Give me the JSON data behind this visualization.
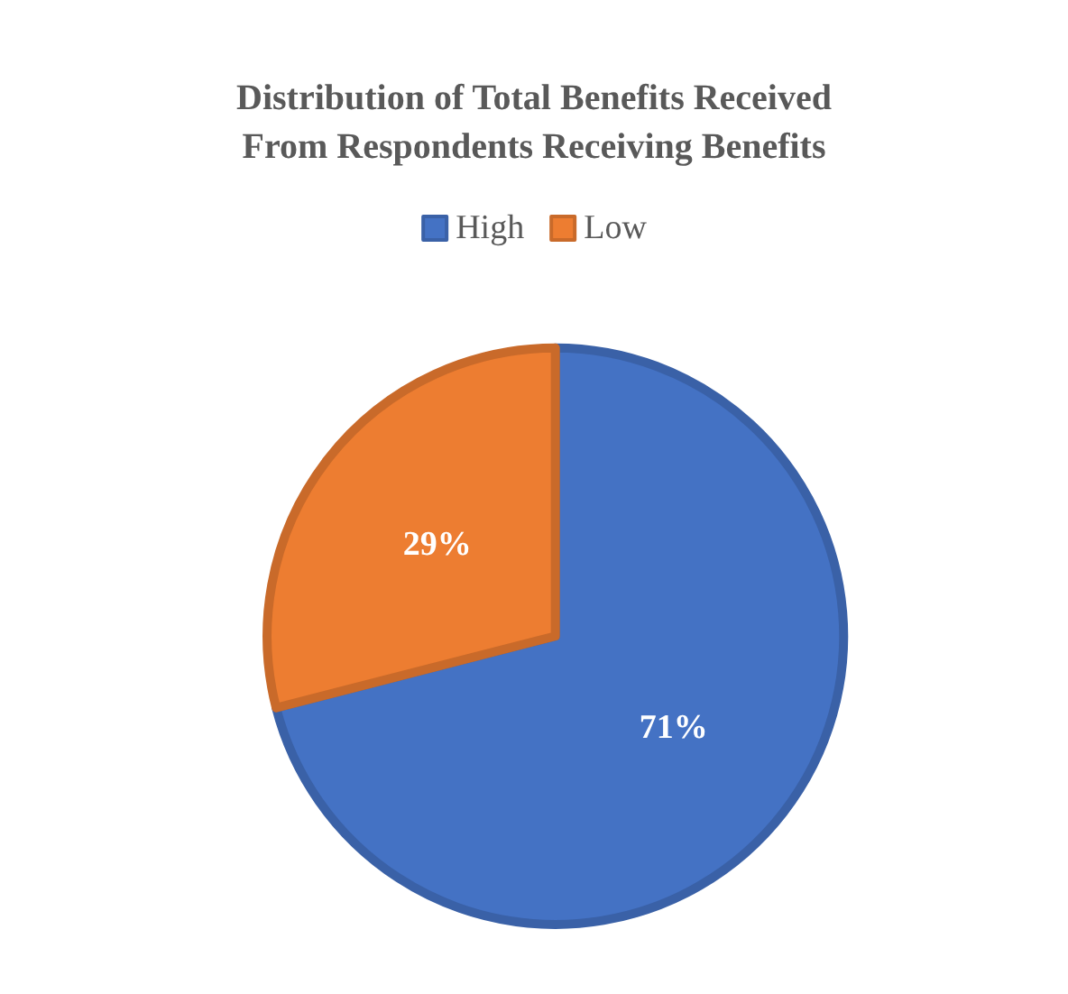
{
  "chart_data": {
    "type": "pie",
    "title": "Distribution of Total Benefits Received\nFrom Respondents Receiving Benefits",
    "categories": [
      "High",
      "Low"
    ],
    "values": [
      71,
      29
    ],
    "colors": [
      "#4472c4",
      "#ed7d31"
    ],
    "value_labels": [
      "71%",
      "29%"
    ],
    "legend": "top"
  }
}
